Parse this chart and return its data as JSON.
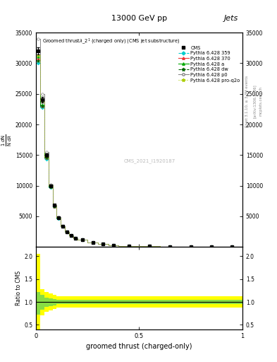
{
  "title_top": "13000 GeV pp",
  "title_right": "Jets",
  "xlabel": "groomed thrust (charged-only)",
  "ylabel_ratio": "Ratio to CMS",
  "watermark": "CMS_2021_I1920187",
  "rivet_text": "Rivet 3.1.10, ≥ 3.3M events",
  "arxiv_text": "[arXiv:1306.3436]",
  "mcplots_text": "mcplots.cern.ch",
  "xlim": [
    0,
    1
  ],
  "ylim_main_max": 35000,
  "ylim_ratio": [
    0.4,
    2.2
  ],
  "ratio_yticks": [
    0.5,
    1.0,
    1.5,
    2.0
  ],
  "line_colors": {
    "359": "#00cccc",
    "370": "#ee3333",
    "a": "#00aa00",
    "dw": "#006600",
    "p0": "#888888",
    "pro_q2o": "#aacc00"
  },
  "xbins": [
    0.0,
    0.02,
    0.04,
    0.06,
    0.08,
    0.1,
    0.12,
    0.14,
    0.16,
    0.18,
    0.2,
    0.25,
    0.3,
    0.35,
    0.4,
    0.5,
    0.6,
    0.7,
    0.8,
    0.9,
    1.0
  ],
  "cms_values": [
    32000,
    24000,
    15000,
    10000,
    6800,
    4800,
    3400,
    2500,
    1900,
    1450,
    1150,
    720,
    460,
    305,
    200,
    118,
    68,
    38,
    20,
    10
  ],
  "cms_errors": [
    600,
    450,
    300,
    200,
    150,
    110,
    85,
    65,
    52,
    42,
    36,
    25,
    18,
    14,
    11,
    8,
    6,
    4,
    3,
    2
  ],
  "mc_p0_first": 34000,
  "band_yellow_upper": [
    2.05,
    1.28,
    1.22,
    1.18,
    1.15,
    1.13,
    1.12,
    1.12,
    1.12,
    1.12,
    1.12,
    1.12,
    1.12,
    1.12,
    1.12,
    1.12,
    1.12,
    1.12,
    1.12,
    1.12
  ],
  "band_yellow_lower": [
    0.4,
    0.7,
    0.78,
    0.82,
    0.85,
    0.87,
    0.88,
    0.88,
    0.88,
    0.88,
    0.88,
    0.88,
    0.88,
    0.88,
    0.88,
    0.88,
    0.88,
    0.88,
    0.88,
    0.88
  ],
  "band_green_upper": [
    1.22,
    1.15,
    1.1,
    1.08,
    1.06,
    1.05,
    1.05,
    1.05,
    1.05,
    1.05,
    1.05,
    1.05,
    1.05,
    1.05,
    1.05,
    1.05,
    1.05,
    1.05,
    1.05,
    1.05
  ],
  "band_green_lower": [
    0.73,
    0.83,
    0.89,
    0.91,
    0.93,
    0.95,
    0.95,
    0.95,
    0.95,
    0.95,
    0.95,
    0.95,
    0.95,
    0.95,
    0.95,
    0.95,
    0.95,
    0.95,
    0.95,
    0.95
  ]
}
